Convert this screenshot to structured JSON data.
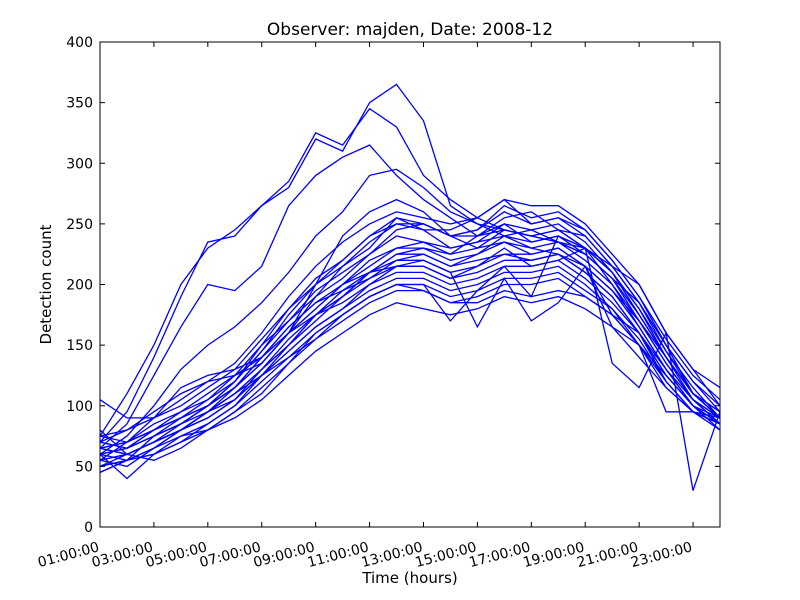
{
  "chart_data": {
    "type": "line",
    "title": "Observer: majden, Date: 2008-12",
    "xlabel": "Time (hours)",
    "ylabel": "Detection count",
    "x_hours": [
      1,
      2,
      3,
      4,
      5,
      6,
      7,
      8,
      9,
      10,
      11,
      12,
      13,
      14,
      15,
      16,
      17,
      18,
      19,
      20,
      21,
      22,
      23,
      24
    ],
    "xlim": [
      1,
      24
    ],
    "ylim": [
      0,
      400
    ],
    "x_ticks": [
      "01:00:00",
      "03:00:00",
      "05:00:00",
      "07:00:00",
      "09:00:00",
      "11:00:00",
      "13:00:00",
      "15:00:00",
      "17:00:00",
      "19:00:00",
      "21:00:00",
      "23:00:00"
    ],
    "y_ticks": [
      0,
      50,
      100,
      150,
      200,
      250,
      300,
      350,
      400
    ],
    "grid": false,
    "line_color": "#0000ff",
    "series": [
      {
        "values": [
          75,
          110,
          150,
          200,
          230,
          245,
          265,
          280,
          320,
          310,
          350,
          365,
          335,
          265,
          250,
          240,
          245,
          235,
          230,
          215,
          200,
          160,
          130,
          100
        ]
      },
      {
        "values": [
          70,
          95,
          140,
          190,
          235,
          240,
          265,
          285,
          325,
          315,
          345,
          330,
          290,
          270,
          255,
          245,
          240,
          235,
          225,
          205,
          185,
          150,
          120,
          95
        ]
      },
      {
        "values": [
          65,
          85,
          125,
          165,
          200,
          195,
          215,
          265,
          290,
          305,
          315,
          290,
          270,
          255,
          240,
          250,
          235,
          240,
          230,
          210,
          180,
          145,
          115,
          90
        ]
      },
      {
        "values": [
          60,
          75,
          100,
          130,
          150,
          165,
          185,
          210,
          240,
          260,
          290,
          295,
          280,
          260,
          250,
          245,
          240,
          235,
          225,
          205,
          175,
          140,
          110,
          90
        ]
      },
      {
        "values": [
          55,
          70,
          90,
          115,
          125,
          130,
          140,
          160,
          200,
          240,
          260,
          270,
          260,
          240,
          230,
          235,
          225,
          230,
          215,
          195,
          170,
          135,
          105,
          85
        ]
      },
      {
        "values": [
          70,
          80,
          95,
          110,
          120,
          125,
          135,
          160,
          190,
          215,
          235,
          250,
          245,
          245,
          255,
          270,
          250,
          255,
          245,
          220,
          190,
          150,
          110,
          90
        ]
      },
      {
        "values": [
          60,
          65,
          75,
          90,
          100,
          120,
          145,
          175,
          200,
          215,
          230,
          255,
          250,
          240,
          240,
          255,
          260,
          245,
          240,
          215,
          185,
          145,
          110,
          90
        ]
      },
      {
        "values": [
          50,
          60,
          70,
          85,
          100,
          120,
          150,
          180,
          205,
          220,
          240,
          255,
          245,
          230,
          235,
          250,
          245,
          250,
          235,
          210,
          180,
          140,
          105,
          85
        ]
      },
      {
        "values": [
          65,
          70,
          80,
          95,
          110,
          125,
          150,
          170,
          190,
          205,
          225,
          240,
          235,
          225,
          240,
          245,
          240,
          245,
          230,
          210,
          175,
          140,
          110,
          95
        ]
      },
      {
        "values": [
          55,
          60,
          70,
          80,
          95,
          115,
          140,
          165,
          185,
          200,
          215,
          230,
          235,
          230,
          235,
          240,
          235,
          240,
          225,
          205,
          170,
          140,
          110,
          90
        ]
      },
      {
        "values": [
          60,
          65,
          75,
          85,
          100,
          115,
          135,
          160,
          180,
          200,
          210,
          225,
          225,
          215,
          225,
          235,
          230,
          235,
          220,
          200,
          170,
          135,
          105,
          90
        ]
      },
      {
        "values": [
          45,
          55,
          65,
          80,
          95,
          110,
          130,
          150,
          175,
          190,
          210,
          220,
          220,
          210,
          215,
          225,
          225,
          230,
          215,
          195,
          165,
          130,
          100,
          85
        ]
      },
      {
        "values": [
          70,
          65,
          80,
          90,
          100,
          115,
          140,
          165,
          185,
          195,
          210,
          215,
          215,
          205,
          210,
          220,
          220,
          225,
          210,
          190,
          160,
          130,
          100,
          85
        ]
      },
      {
        "values": [
          55,
          50,
          65,
          80,
          90,
          105,
          130,
          155,
          175,
          185,
          200,
          210,
          210,
          200,
          205,
          215,
          215,
          220,
          205,
          185,
          160,
          125,
          100,
          80
        ]
      },
      {
        "values": [
          60,
          40,
          60,
          75,
          85,
          100,
          125,
          145,
          165,
          180,
          195,
          205,
          205,
          195,
          200,
          210,
          210,
          215,
          200,
          180,
          155,
          120,
          95,
          85
        ]
      },
      {
        "values": [
          50,
          55,
          60,
          70,
          85,
          100,
          120,
          140,
          160,
          175,
          190,
          200,
          200,
          190,
          195,
          205,
          205,
          210,
          195,
          180,
          150,
          120,
          95,
          85
        ]
      },
      {
        "values": [
          45,
          55,
          65,
          75,
          80,
          95,
          115,
          135,
          155,
          170,
          185,
          195,
          195,
          185,
          190,
          200,
          200,
          205,
          190,
          175,
          150,
          115,
          95,
          80
        ]
      },
      {
        "values": [
          80,
          60,
          70,
          80,
          90,
          105,
          125,
          150,
          170,
          190,
          205,
          220,
          225,
          215,
          220,
          225,
          220,
          225,
          210,
          190,
          160,
          125,
          100,
          85
        ]
      },
      {
        "values": [
          65,
          60,
          55,
          65,
          80,
          95,
          110,
          135,
          160,
          175,
          190,
          200,
          200,
          170,
          195,
          215,
          190,
          240,
          230,
          200,
          165,
          130,
          105,
          90
        ]
      },
      {
        "values": [
          60,
          55,
          75,
          85,
          95,
          105,
          125,
          145,
          165,
          180,
          200,
          215,
          220,
          210,
          165,
          205,
          170,
          185,
          215,
          175,
          160,
          120,
          95,
          90
        ]
      },
      {
        "values": [
          75,
          70,
          85,
          95,
          105,
          125,
          140,
          160,
          175,
          195,
          205,
          215,
          215,
          205,
          215,
          230,
          215,
          220,
          230,
          135,
          115,
          160,
          30,
          95
        ]
      },
      {
        "values": [
          70,
          65,
          80,
          90,
          100,
          115,
          135,
          160,
          180,
          200,
          220,
          230,
          230,
          220,
          225,
          240,
          230,
          225,
          215,
          165,
          150,
          95,
          95,
          85
        ]
      },
      {
        "values": [
          55,
          60,
          70,
          80,
          95,
          110,
          130,
          150,
          175,
          190,
          210,
          225,
          230,
          225,
          230,
          245,
          240,
          245,
          230,
          210,
          175,
          140,
          110,
          95
        ]
      },
      {
        "values": [
          65,
          70,
          80,
          90,
          105,
          120,
          145,
          170,
          195,
          210,
          225,
          245,
          250,
          240,
          245,
          260,
          250,
          255,
          240,
          215,
          185,
          150,
          120,
          100
        ]
      },
      {
        "values": [
          75,
          80,
          90,
          100,
          115,
          130,
          155,
          180,
          200,
          220,
          240,
          250,
          250,
          240,
          245,
          265,
          255,
          260,
          245,
          220,
          190,
          155,
          125,
          105
        ]
      },
      {
        "values": [
          105,
          90,
          90,
          105,
          120,
          135,
          160,
          190,
          215,
          235,
          250,
          260,
          255,
          250,
          255,
          270,
          265,
          265,
          250,
          225,
          200,
          160,
          130,
          115
        ]
      },
      {
        "values": [
          50,
          55,
          60,
          70,
          80,
          90,
          105,
          125,
          145,
          160,
          175,
          185,
          180,
          175,
          180,
          190,
          185,
          190,
          180,
          165,
          140,
          115,
          95,
          85
        ]
      },
      {
        "values": [
          65,
          60,
          70,
          80,
          95,
          110,
          125,
          140,
          155,
          175,
          190,
          200,
          195,
          185,
          185,
          195,
          190,
          195,
          190,
          175,
          150,
          125,
          100,
          90
        ]
      }
    ]
  }
}
